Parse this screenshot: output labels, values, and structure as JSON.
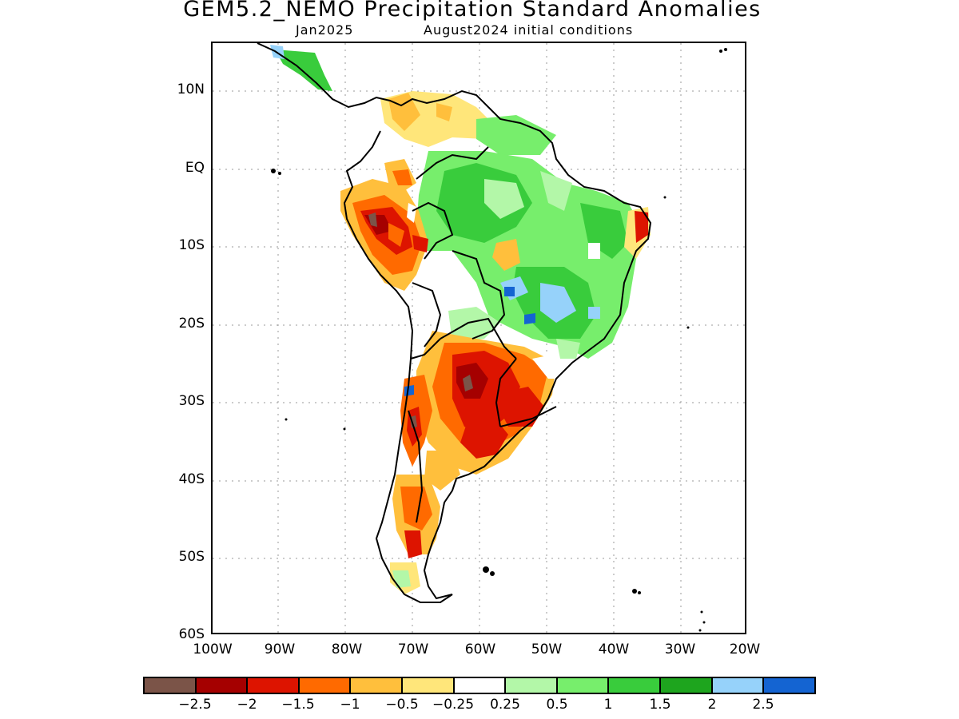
{
  "header": {
    "title": "GEM5.2_NEMO Precipitation Standard Anomalies",
    "valid_month": "Jan2025",
    "initial_conditions": "August2024 initial conditions"
  },
  "axes": {
    "y_labels": [
      "10N",
      "EQ",
      "10S",
      "20S",
      "30S",
      "40S",
      "50S",
      "60S"
    ],
    "x_labels": [
      "100W",
      "90W",
      "80W",
      "70W",
      "60W",
      "50W",
      "40W",
      "30W",
      "20W"
    ],
    "lon_range": [
      -100,
      -20
    ],
    "lat_range": [
      -60,
      16
    ]
  },
  "legend": {
    "labels": [
      "-2.5",
      "-2",
      "-1.5",
      "-1",
      "-0.5",
      "-0.25",
      "0.25",
      "0.5",
      "1",
      "1.5",
      "2",
      "2.5"
    ],
    "colors": [
      "#7b5448",
      "#a50000",
      "#dd1400",
      "#ff6a00",
      "#ffbf3c",
      "#ffe67a",
      "#ffffff",
      "#b3f7a8",
      "#77ee6c",
      "#39cc3c",
      "#1ea51e",
      "#96d2fa",
      "#1464d2"
    ]
  }
}
